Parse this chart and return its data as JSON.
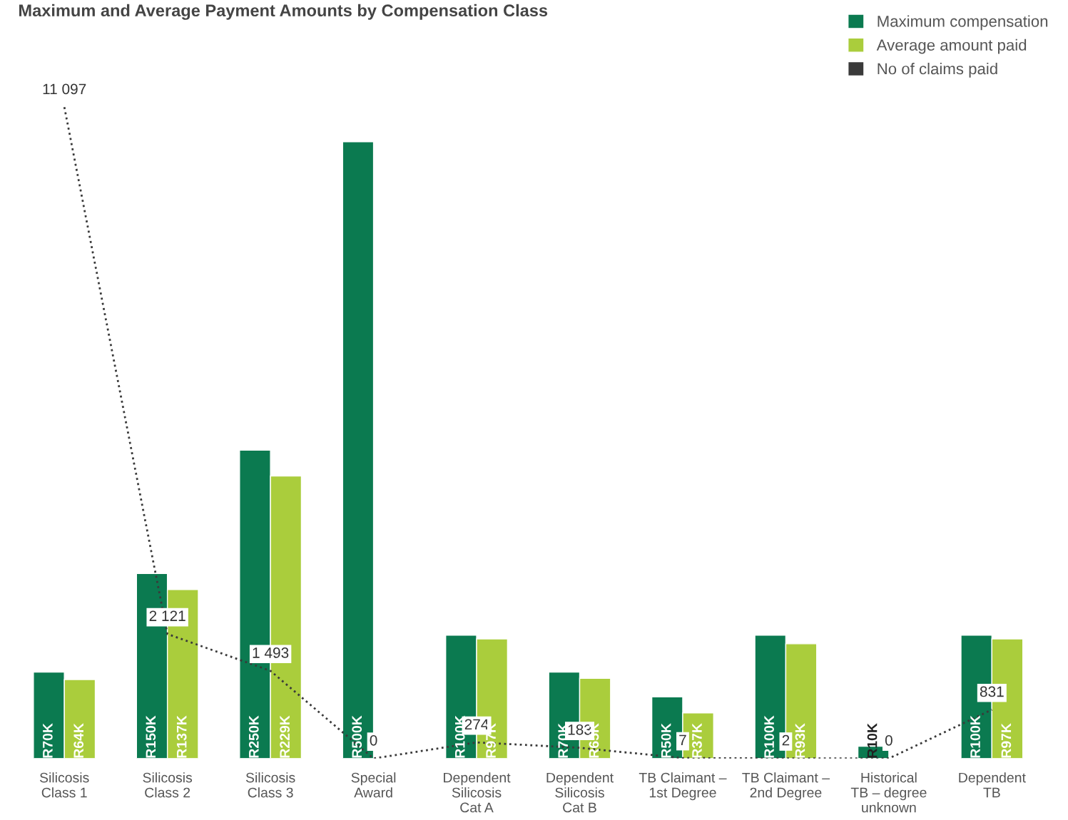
{
  "chart_data": {
    "type": "bar",
    "title": "Maximum and Average Payment Amounts by Compensation Class",
    "categories": [
      "Silicosis\nClass 1",
      "Silicosis\nClass 2",
      "Silicosis\nClass 3",
      "Special\nAward",
      "Dependent\nSilicosis\nCat A",
      "Dependent\nSilicosis\nCat B",
      "TB Claimant –\n1st Degree",
      "TB Claimant –\n2nd Degree",
      "Historical\nTB – degree\nunknown",
      "Dependent\nTB"
    ],
    "series": [
      {
        "name": "Maximum compensation",
        "color": "#0b7a50",
        "values": [
          70000,
          150000,
          250000,
          500000,
          100000,
          70000,
          50000,
          100000,
          10000,
          100000
        ],
        "value_labels": [
          "R70K",
          "R150K",
          "R250K",
          "R500K",
          "R100K",
          "R70K",
          "R50K",
          "R100K",
          "R10K",
          "R100K"
        ]
      },
      {
        "name": "Average amount paid",
        "color": "#aacd3c",
        "values": [
          64000,
          137000,
          229000,
          null,
          97000,
          65000,
          37000,
          93000,
          null,
          97000
        ],
        "value_labels": [
          "R64K",
          "R137K",
          "R229K",
          null,
          "R97K",
          "R65K",
          "R37K",
          "R93K",
          null,
          "R97K"
        ]
      },
      {
        "name": "No of claims paid",
        "color": "#3a3a3a",
        "type": "line",
        "axis": "y2",
        "line_style": "dotted",
        "marker": "none",
        "values": [
          11097,
          2121,
          1493,
          0,
          274,
          183,
          7,
          2,
          0,
          831
        ],
        "value_labels": [
          "11 097",
          "2 121",
          "1 493",
          "0",
          "274",
          "183",
          "7",
          "2",
          "0",
          "831"
        ]
      }
    ],
    "legend": "top right",
    "grid": false
  }
}
